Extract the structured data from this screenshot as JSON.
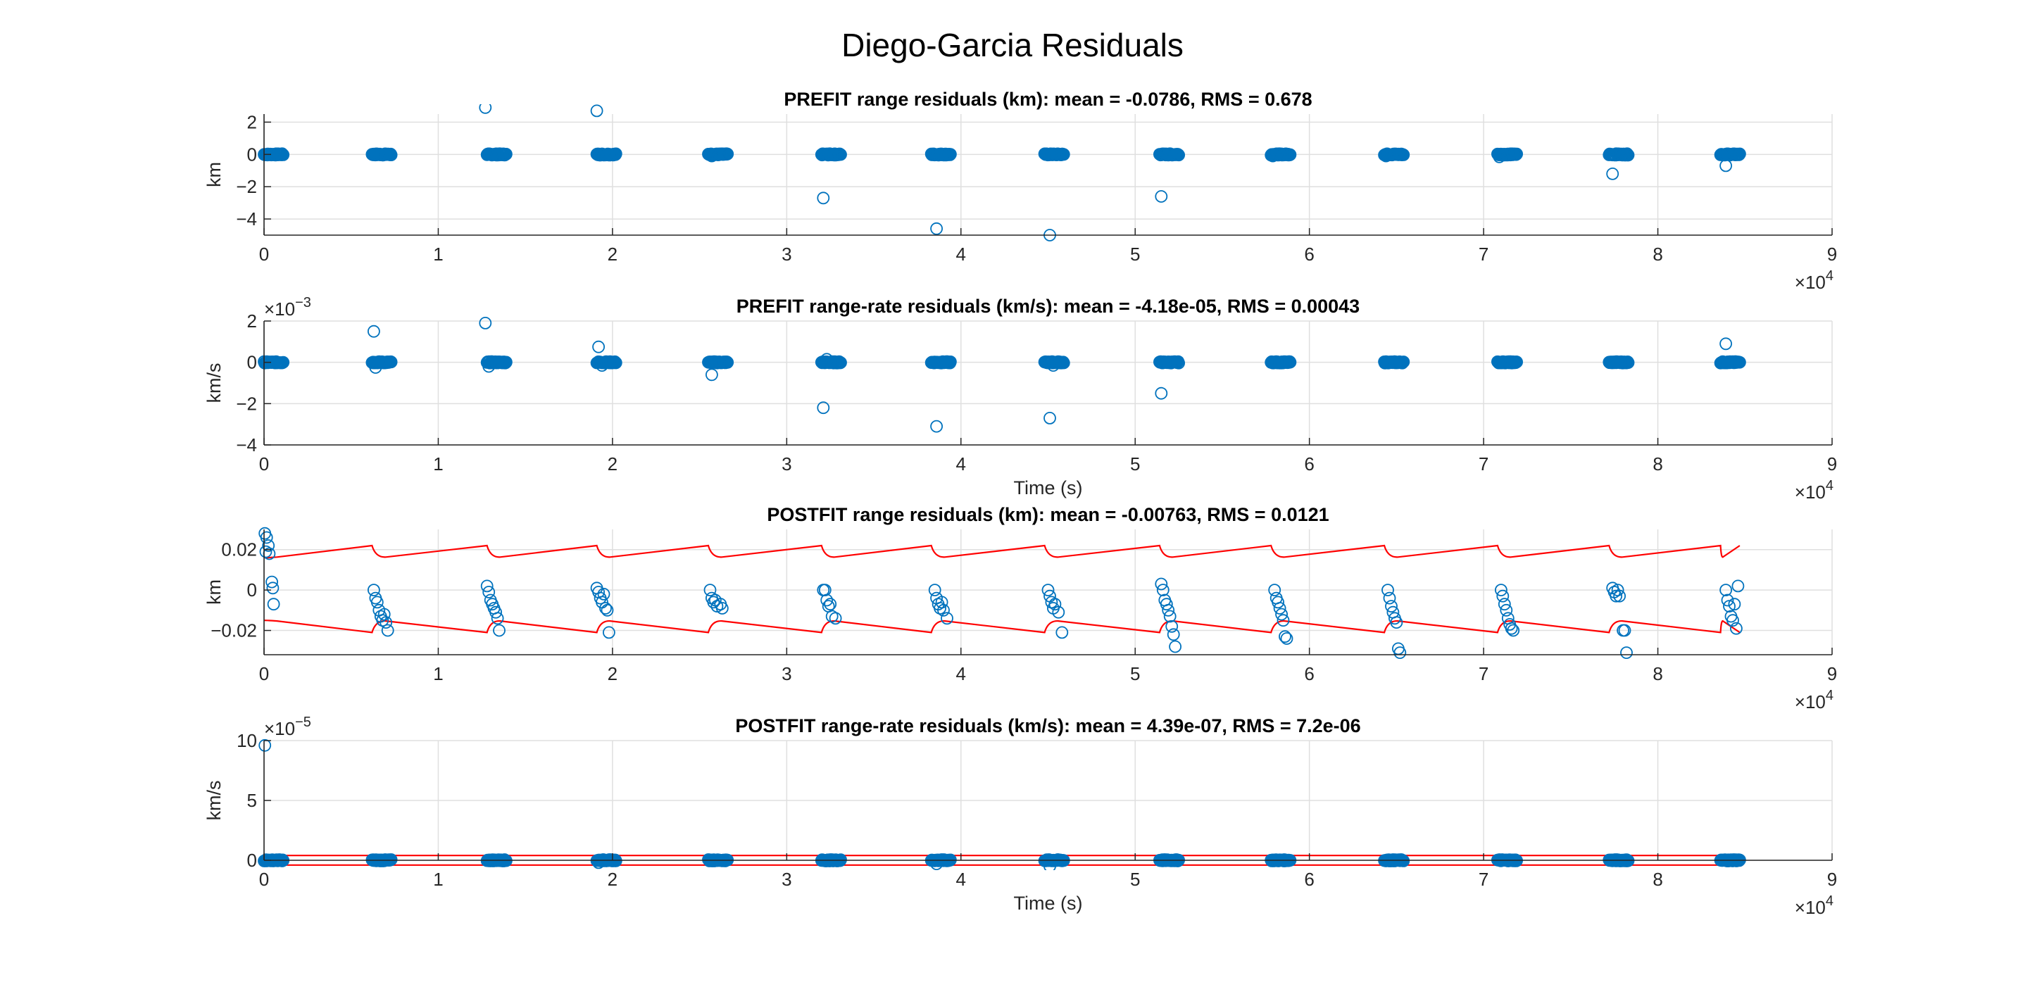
{
  "figure": {
    "title": "Diego-Garcia Residuals",
    "colors": {
      "marker": "#0072BD",
      "bound": "#FF0000",
      "grid": "#DFDFDF",
      "axis": "#262626"
    }
  },
  "chart_data": [
    {
      "type": "scatter",
      "title": "PREFIT range residuals (km): mean = -0.0786, RMS = 0.678",
      "xlabel": "",
      "ylabel": "km",
      "xlim": [
        0,
        90000
      ],
      "ylim": [
        -5,
        2.5
      ],
      "xticks": [
        0,
        1,
        2,
        3,
        4,
        5,
        6,
        7,
        8,
        9
      ],
      "x_exponent": "×10",
      "x_exponent_power": "4",
      "y_exponent_power": "",
      "yticks": [
        -4,
        -2,
        0,
        2
      ],
      "grid": true,
      "passes_start": [
        0,
        6200,
        12800,
        19100,
        25500,
        32000,
        38300,
        44800,
        51400,
        57800,
        64300,
        70800,
        77200,
        83600
      ],
      "pass_duration": 1100,
      "cluster_y": 0,
      "series": [
        {
          "marker": "circle",
          "outliers": [
            {
              "x": 12700,
              "y": 2.9
            },
            {
              "x": 19100,
              "y": 2.7
            },
            {
              "x": 32100,
              "y": -2.7
            },
            {
              "x": 38600,
              "y": -4.6
            },
            {
              "x": 45100,
              "y": -5.0
            },
            {
              "x": 51500,
              "y": -2.6
            },
            {
              "x": 77400,
              "y": -1.2
            },
            {
              "x": 83900,
              "y": -0.7
            },
            {
              "x": 25700,
              "y": -0.1
            },
            {
              "x": 70900,
              "y": -0.15
            },
            {
              "x": 64400,
              "y": -0.1
            },
            {
              "x": 57900,
              "y": -0.1
            }
          ]
        }
      ]
    },
    {
      "type": "scatter",
      "title": "PREFIT range-rate residuals (km/s): mean = -4.18e-05, RMS = 0.00043",
      "xlabel": "Time (s)",
      "ylabel": "km/s",
      "xlim": [
        0,
        90000
      ],
      "ylim": [
        -4,
        2
      ],
      "xticks": [
        0,
        1,
        2,
        3,
        4,
        5,
        6,
        7,
        8,
        9
      ],
      "x_exponent": "×10",
      "x_exponent_power": "4",
      "y_exponent": "×10",
      "y_exponent_power": "-3",
      "yticks": [
        -4,
        -2,
        0,
        2
      ],
      "grid": true,
      "passes_start": [
        0,
        6200,
        12800,
        19100,
        25500,
        32000,
        38300,
        44800,
        51400,
        57800,
        64300,
        70800,
        77200,
        83600
      ],
      "pass_duration": 1100,
      "cluster_y": 0,
      "series": [
        {
          "marker": "circle",
          "outliers": [
            {
              "x": 6300,
              "y": 1.5
            },
            {
              "x": 12700,
              "y": 1.9
            },
            {
              "x": 19200,
              "y": 0.75
            },
            {
              "x": 25700,
              "y": -0.6
            },
            {
              "x": 32100,
              "y": -2.2
            },
            {
              "x": 38600,
              "y": -3.1
            },
            {
              "x": 45100,
              "y": -2.7
            },
            {
              "x": 51500,
              "y": -1.5
            },
            {
              "x": 83900,
              "y": 0.9
            },
            {
              "x": 6400,
              "y": -0.25
            },
            {
              "x": 12900,
              "y": -0.2
            },
            {
              "x": 32300,
              "y": 0.15
            },
            {
              "x": 45300,
              "y": -0.15
            },
            {
              "x": 19400,
              "y": -0.15
            }
          ]
        }
      ]
    },
    {
      "type": "scatter",
      "title": "POSTFIT range residuals (km): mean = -0.00763, RMS = 0.0121",
      "xlabel": "",
      "ylabel": "km",
      "xlim": [
        0,
        90000
      ],
      "ylim": [
        -0.032,
        0.03
      ],
      "xticks": [
        0,
        1,
        2,
        3,
        4,
        5,
        6,
        7,
        8,
        9
      ],
      "x_exponent": "×10",
      "x_exponent_power": "4",
      "y_exponent_power": "",
      "yticks": [
        -0.02,
        0,
        0.02
      ],
      "grid": true,
      "bound": {
        "color": "#FF0000",
        "upper_start": 0.016,
        "upper_end": 0.022,
        "lower_start": -0.015,
        "lower_end": -0.021,
        "x_end": 84700
      },
      "passes_start": [
        0,
        6200,
        12800,
        19100,
        25500,
        32000,
        38300,
        44800,
        51400,
        57800,
        64300,
        70800,
        77200,
        83600
      ],
      "pass_duration": 1100,
      "series": [
        {
          "marker": "circle",
          "points": [
            {
              "x": 50,
              "y": 0.028
            },
            {
              "x": 150,
              "y": 0.026
            },
            {
              "x": 250,
              "y": 0.022
            },
            {
              "x": 100,
              "y": 0.019
            },
            {
              "x": 300,
              "y": 0.018
            },
            {
              "x": 450,
              "y": 0.004
            },
            {
              "x": 500,
              "y": 0.001
            },
            {
              "x": 550,
              "y": -0.007
            },
            {
              "x": 6300,
              "y": 0.0
            },
            {
              "x": 6400,
              "y": -0.004
            },
            {
              "x": 6500,
              "y": -0.006
            },
            {
              "x": 6600,
              "y": -0.01
            },
            {
              "x": 6700,
              "y": -0.013
            },
            {
              "x": 6800,
              "y": -0.015
            },
            {
              "x": 6900,
              "y": -0.012
            },
            {
              "x": 7000,
              "y": -0.016
            },
            {
              "x": 7100,
              "y": -0.02
            },
            {
              "x": 12800,
              "y": 0.002
            },
            {
              "x": 12900,
              "y": -0.001
            },
            {
              "x": 13000,
              "y": -0.005
            },
            {
              "x": 13100,
              "y": -0.007
            },
            {
              "x": 13200,
              "y": -0.009
            },
            {
              "x": 13300,
              "y": -0.011
            },
            {
              "x": 13400,
              "y": -0.014
            },
            {
              "x": 13500,
              "y": -0.02
            },
            {
              "x": 19100,
              "y": 0.001
            },
            {
              "x": 19200,
              "y": -0.001
            },
            {
              "x": 19300,
              "y": -0.004
            },
            {
              "x": 19400,
              "y": -0.006
            },
            {
              "x": 19500,
              "y": -0.002
            },
            {
              "x": 19600,
              "y": -0.009
            },
            {
              "x": 19700,
              "y": -0.01
            },
            {
              "x": 19800,
              "y": -0.021
            },
            {
              "x": 25600,
              "y": 0.0
            },
            {
              "x": 25700,
              "y": -0.004
            },
            {
              "x": 25800,
              "y": -0.006
            },
            {
              "x": 25900,
              "y": -0.005
            },
            {
              "x": 26000,
              "y": -0.008
            },
            {
              "x": 26200,
              "y": -0.007
            },
            {
              "x": 26300,
              "y": -0.009
            },
            {
              "x": 32100,
              "y": 0.0
            },
            {
              "x": 32200,
              "y": 0.0
            },
            {
              "x": 32300,
              "y": -0.005
            },
            {
              "x": 32400,
              "y": -0.008
            },
            {
              "x": 32500,
              "y": -0.007
            },
            {
              "x": 32600,
              "y": -0.013
            },
            {
              "x": 32800,
              "y": -0.014
            },
            {
              "x": 38500,
              "y": 0.0
            },
            {
              "x": 38600,
              "y": -0.004
            },
            {
              "x": 38700,
              "y": -0.007
            },
            {
              "x": 38800,
              "y": -0.009
            },
            {
              "x": 38900,
              "y": -0.006
            },
            {
              "x": 39000,
              "y": -0.01
            },
            {
              "x": 39200,
              "y": -0.014
            },
            {
              "x": 45000,
              "y": 0.0
            },
            {
              "x": 45100,
              "y": -0.003
            },
            {
              "x": 45200,
              "y": -0.006
            },
            {
              "x": 45300,
              "y": -0.009
            },
            {
              "x": 45400,
              "y": -0.007
            },
            {
              "x": 45600,
              "y": -0.011
            },
            {
              "x": 45800,
              "y": -0.021
            },
            {
              "x": 51500,
              "y": 0.003
            },
            {
              "x": 51600,
              "y": 0.0
            },
            {
              "x": 51700,
              "y": -0.005
            },
            {
              "x": 51800,
              "y": -0.007
            },
            {
              "x": 51900,
              "y": -0.01
            },
            {
              "x": 52000,
              "y": -0.013
            },
            {
              "x": 52100,
              "y": -0.018
            },
            {
              "x": 52200,
              "y": -0.022
            },
            {
              "x": 52300,
              "y": -0.028
            },
            {
              "x": 58000,
              "y": 0.0
            },
            {
              "x": 58100,
              "y": -0.004
            },
            {
              "x": 58200,
              "y": -0.006
            },
            {
              "x": 58300,
              "y": -0.009
            },
            {
              "x": 58400,
              "y": -0.012
            },
            {
              "x": 58500,
              "y": -0.015
            },
            {
              "x": 58600,
              "y": -0.023
            },
            {
              "x": 58700,
              "y": -0.024
            },
            {
              "x": 64500,
              "y": 0.0
            },
            {
              "x": 64600,
              "y": -0.004
            },
            {
              "x": 64700,
              "y": -0.008
            },
            {
              "x": 64800,
              "y": -0.011
            },
            {
              "x": 64900,
              "y": -0.014
            },
            {
              "x": 65000,
              "y": -0.016
            },
            {
              "x": 65100,
              "y": -0.029
            },
            {
              "x": 65200,
              "y": -0.031
            },
            {
              "x": 71000,
              "y": 0.0
            },
            {
              "x": 71100,
              "y": -0.003
            },
            {
              "x": 71200,
              "y": -0.007
            },
            {
              "x": 71300,
              "y": -0.01
            },
            {
              "x": 71400,
              "y": -0.014
            },
            {
              "x": 71500,
              "y": -0.017
            },
            {
              "x": 71600,
              "y": -0.019
            },
            {
              "x": 71700,
              "y": -0.02
            },
            {
              "x": 77400,
              "y": 0.001
            },
            {
              "x": 77500,
              "y": -0.001
            },
            {
              "x": 77600,
              "y": -0.003
            },
            {
              "x": 77700,
              "y": 0.0
            },
            {
              "x": 77800,
              "y": -0.003
            },
            {
              "x": 78000,
              "y": -0.02
            },
            {
              "x": 78100,
              "y": -0.02
            },
            {
              "x": 78200,
              "y": -0.031
            },
            {
              "x": 83900,
              "y": 0.0
            },
            {
              "x": 84000,
              "y": -0.005
            },
            {
              "x": 84100,
              "y": -0.008
            },
            {
              "x": 84200,
              "y": -0.013
            },
            {
              "x": 84300,
              "y": -0.015
            },
            {
              "x": 84400,
              "y": -0.007
            },
            {
              "x": 84500,
              "y": -0.019
            },
            {
              "x": 84600,
              "y": 0.002
            }
          ]
        }
      ]
    },
    {
      "type": "scatter",
      "title": "POSTFIT range-rate residuals (km/s): mean = 4.39e-07, RMS = 7.2e-06",
      "xlabel": "Time (s)",
      "ylabel": "km/s",
      "xlim": [
        0,
        90000
      ],
      "ylim": [
        0,
        10
      ],
      "xticks": [
        0,
        1,
        2,
        3,
        4,
        5,
        6,
        7,
        8,
        9
      ],
      "x_exponent": "×10",
      "x_exponent_power": "4",
      "y_exponent": "×10",
      "y_exponent_power": "-5",
      "yticks": [
        0,
        5,
        10
      ],
      "grid": true,
      "bound": {
        "color": "#FF0000",
        "upper_start": 0.4,
        "upper_end": 0.4,
        "lower_start": -0.4,
        "lower_end": -0.4,
        "x_end": 84700
      },
      "passes_start": [
        0,
        6200,
        12800,
        19100,
        25500,
        32000,
        38300,
        44800,
        51400,
        57800,
        64300,
        70800,
        77200,
        83600
      ],
      "pass_duration": 1100,
      "cluster_y": 0,
      "series": [
        {
          "marker": "circle",
          "outliers": [
            {
              "x": 50,
              "y": 9.6
            },
            {
              "x": 38600,
              "y": -0.3
            },
            {
              "x": 45100,
              "y": -0.5
            },
            {
              "x": 19200,
              "y": -0.2
            }
          ]
        }
      ]
    }
  ]
}
